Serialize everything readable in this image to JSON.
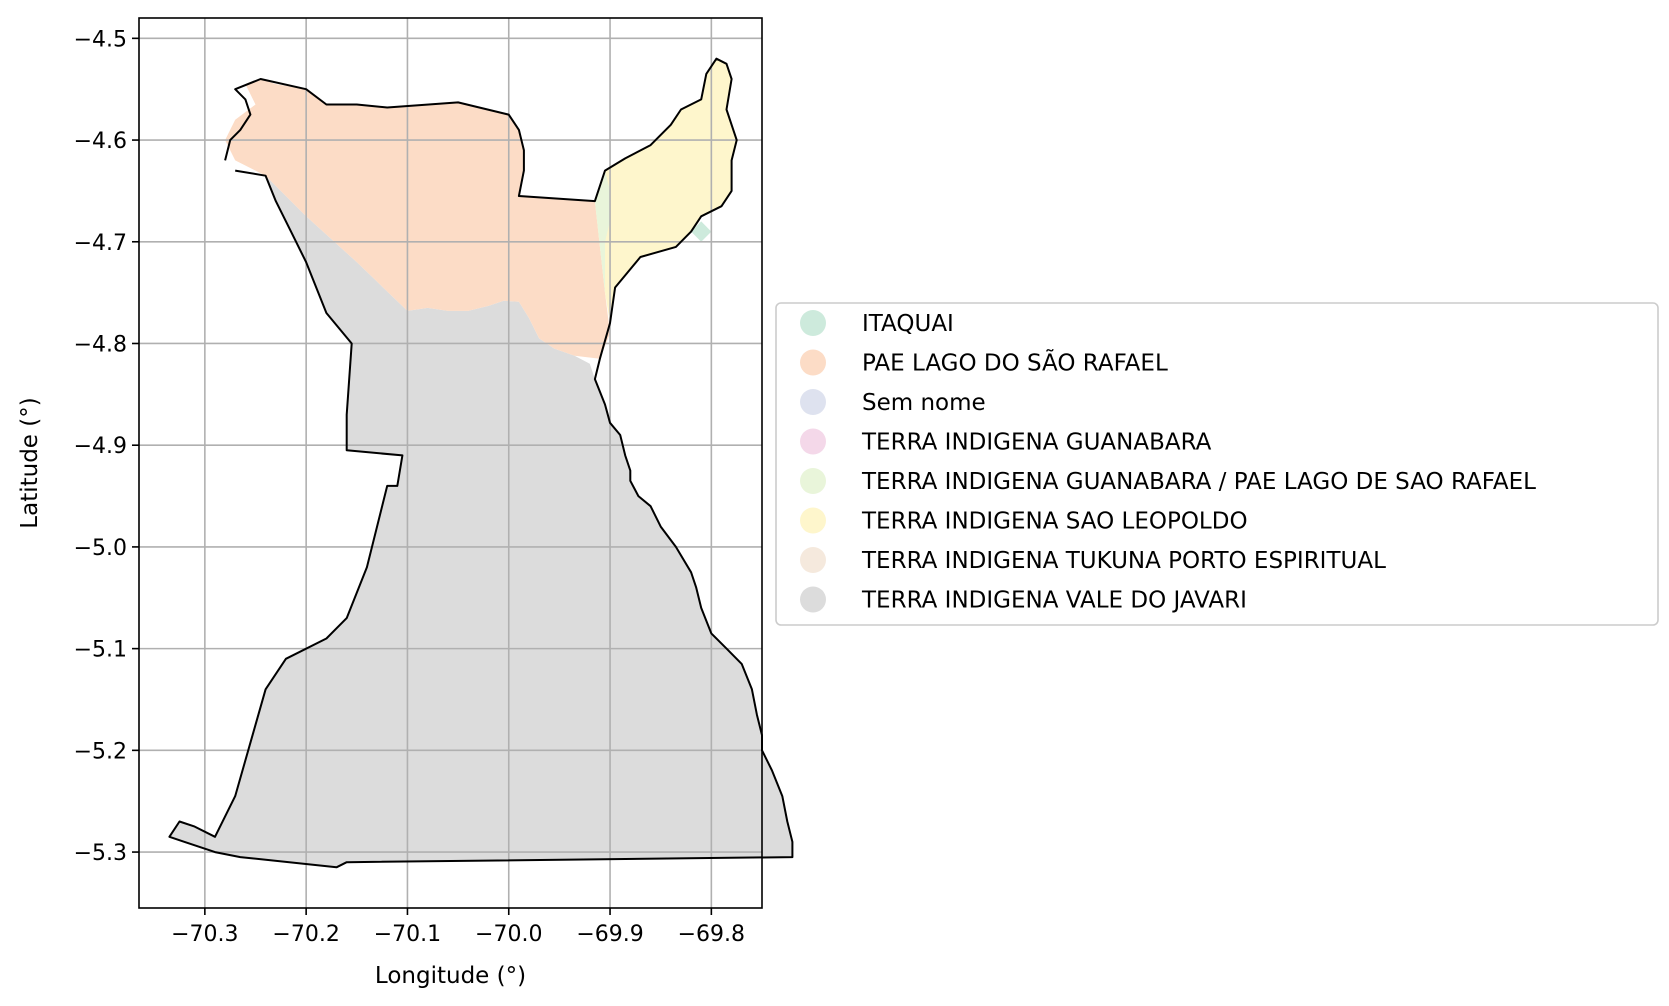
{
  "chart_data": {
    "type": "map",
    "xlabel": "Longitude (°)",
    "ylabel": "Latitude (°)",
    "xlim": [
      -70.365,
      -69.75
    ],
    "ylim": [
      -5.355,
      -4.48
    ],
    "xticks": [
      -70.3,
      -70.2,
      -70.1,
      -70.0,
      -69.9,
      -69.8
    ],
    "xtick_labels": [
      "−70.3",
      "−70.2",
      "−70.1",
      "−70.0",
      "−69.9",
      "−69.8"
    ],
    "yticks": [
      -4.5,
      -4.6,
      -4.7,
      -4.8,
      -4.9,
      -5.0,
      -5.1,
      -5.2,
      -5.3
    ],
    "ytick_labels": [
      "−4.5",
      "−4.6",
      "−4.7",
      "−4.8",
      "−4.9",
      "−5.0",
      "−5.1",
      "−5.2",
      "−5.3"
    ],
    "grid": true,
    "legend_placement": "center-left outside plot",
    "legend": [
      {
        "label": "ITAQUAI",
        "color": "#cdeadc"
      },
      {
        "label": "PAE LAGO DO SÃO RAFAEL",
        "color": "#fcdcc6"
      },
      {
        "label": "Sem nome",
        "color": "#dee2ef"
      },
      {
        "label": "TERRA INDIGENA GUANABARA",
        "color": "#f4d8e9"
      },
      {
        "label": "TERRA INDIGENA GUANABARA / PAE LAGO DE SAO RAFAEL",
        "color": "#e9f5da"
      },
      {
        "label": "TERRA INDIGENA SAO LEOPOLDO",
        "color": "#fef6cc"
      },
      {
        "label": "TERRA INDIGENA TUKUNA PORTO ESPIRITUAL",
        "color": "#f5e9dd"
      },
      {
        "label": "TERRA INDIGENA VALE DO JAVARI",
        "color": "#dcdcdc"
      }
    ],
    "regions": [
      {
        "name": "TERRA INDIGENA VALE DO JAVARI",
        "color": "#dcdcdc",
        "coords": [
          [
            -70.24,
            -4.635
          ],
          [
            -70.2,
            -4.675
          ],
          [
            -70.15,
            -4.72
          ],
          [
            -70.1,
            -4.768
          ],
          [
            -70.08,
            -4.765
          ],
          [
            -70.06,
            -4.768
          ],
          [
            -70.04,
            -4.768
          ],
          [
            -70.02,
            -4.763
          ],
          [
            -70.005,
            -4.758
          ],
          [
            -69.99,
            -4.759
          ],
          [
            -69.98,
            -4.775
          ],
          [
            -69.97,
            -4.795
          ],
          [
            -69.955,
            -4.805
          ],
          [
            -69.935,
            -4.812
          ],
          [
            -69.92,
            -4.82
          ],
          [
            -69.915,
            -4.835
          ],
          [
            -69.905,
            -4.86
          ],
          [
            -69.9,
            -4.878
          ],
          [
            -69.89,
            -4.89
          ],
          [
            -69.885,
            -4.91
          ],
          [
            -69.88,
            -4.925
          ],
          [
            -69.88,
            -4.935
          ],
          [
            -69.872,
            -4.95
          ],
          [
            -69.86,
            -4.96
          ],
          [
            -69.85,
            -4.98
          ],
          [
            -69.835,
            -5.0
          ],
          [
            -69.82,
            -5.025
          ],
          [
            -69.815,
            -5.04
          ],
          [
            -69.81,
            -5.06
          ],
          [
            -69.8,
            -5.085
          ],
          [
            -69.785,
            -5.1
          ],
          [
            -69.77,
            -5.115
          ],
          [
            -69.76,
            -5.14
          ],
          [
            -69.755,
            -5.165
          ],
          [
            -69.75,
            -5.185
          ],
          [
            -69.75,
            -5.2
          ],
          [
            -69.74,
            -5.22
          ],
          [
            -69.73,
            -5.245
          ],
          [
            -69.725,
            -5.27
          ],
          [
            -69.72,
            -5.29
          ],
          [
            -69.72,
            -5.305
          ],
          [
            -70.16,
            -5.31
          ],
          [
            -70.17,
            -5.315
          ],
          [
            -70.265,
            -5.305
          ],
          [
            -70.29,
            -5.3
          ],
          [
            -70.32,
            -5.29
          ],
          [
            -70.335,
            -5.285
          ],
          [
            -70.325,
            -5.27
          ],
          [
            -70.31,
            -5.275
          ],
          [
            -70.29,
            -5.285
          ],
          [
            -70.27,
            -5.245
          ],
          [
            -70.24,
            -5.14
          ],
          [
            -70.22,
            -5.11
          ],
          [
            -70.18,
            -5.09
          ],
          [
            -70.16,
            -5.07
          ],
          [
            -70.14,
            -5.02
          ],
          [
            -70.12,
            -4.94
          ],
          [
            -70.11,
            -4.94
          ],
          [
            -70.105,
            -4.91
          ],
          [
            -70.16,
            -4.905
          ],
          [
            -70.16,
            -4.87
          ],
          [
            -70.155,
            -4.8
          ],
          [
            -70.18,
            -4.77
          ],
          [
            -70.2,
            -4.72
          ],
          [
            -70.215,
            -4.69
          ],
          [
            -70.23,
            -4.66
          ]
        ]
      },
      {
        "name": "PAE LAGO DO SÃO RAFAEL",
        "color": "#fcdcc6",
        "coords": [
          [
            -70.24,
            -4.635
          ],
          [
            -70.27,
            -4.62
          ],
          [
            -70.28,
            -4.6
          ],
          [
            -70.27,
            -4.58
          ],
          [
            -70.25,
            -4.565
          ],
          [
            -70.26,
            -4.545
          ],
          [
            -70.245,
            -4.54
          ],
          [
            -70.23,
            -4.545
          ],
          [
            -70.2,
            -4.55
          ],
          [
            -70.18,
            -4.565
          ],
          [
            -70.15,
            -4.565
          ],
          [
            -70.12,
            -4.568
          ],
          [
            -70.05,
            -4.563
          ],
          [
            -70.0,
            -4.575
          ],
          [
            -69.99,
            -4.59
          ],
          [
            -69.985,
            -4.61
          ],
          [
            -69.985,
            -4.63
          ],
          [
            -69.99,
            -4.655
          ],
          [
            -69.915,
            -4.66
          ],
          [
            -69.905,
            -4.75
          ],
          [
            -69.9,
            -4.79
          ],
          [
            -69.91,
            -4.815
          ],
          [
            -69.935,
            -4.812
          ],
          [
            -69.955,
            -4.805
          ],
          [
            -69.97,
            -4.795
          ],
          [
            -69.98,
            -4.775
          ],
          [
            -69.99,
            -4.759
          ],
          [
            -70.005,
            -4.758
          ],
          [
            -70.02,
            -4.763
          ],
          [
            -70.04,
            -4.768
          ],
          [
            -70.06,
            -4.768
          ],
          [
            -70.08,
            -4.765
          ],
          [
            -70.1,
            -4.768
          ],
          [
            -70.15,
            -4.72
          ],
          [
            -70.2,
            -4.675
          ]
        ]
      },
      {
        "name": "TERRA INDIGENA SAO LEOPOLDO",
        "color": "#fef6cc",
        "coords": [
          [
            -69.915,
            -4.66
          ],
          [
            -69.905,
            -4.63
          ],
          [
            -69.885,
            -4.618
          ],
          [
            -69.86,
            -4.605
          ],
          [
            -69.84,
            -4.585
          ],
          [
            -69.83,
            -4.57
          ],
          [
            -69.81,
            -4.56
          ],
          [
            -69.805,
            -4.535
          ],
          [
            -69.795,
            -4.52
          ],
          [
            -69.785,
            -4.525
          ],
          [
            -69.78,
            -4.54
          ],
          [
            -69.785,
            -4.57
          ],
          [
            -69.775,
            -4.6
          ],
          [
            -69.78,
            -4.62
          ],
          [
            -69.78,
            -4.65
          ],
          [
            -69.79,
            -4.665
          ],
          [
            -69.81,
            -4.675
          ],
          [
            -69.82,
            -4.69
          ],
          [
            -69.835,
            -4.705
          ],
          [
            -69.87,
            -4.715
          ],
          [
            -69.895,
            -4.745
          ],
          [
            -69.9,
            -4.78
          ],
          [
            -69.905,
            -4.75
          ]
        ]
      },
      {
        "name": "TERRA INDIGENA GUANABARA / PAE LAGO DE SAO RAFAEL",
        "color": "#e9f5da",
        "coords": [
          [
            -69.915,
            -4.66
          ],
          [
            -69.905,
            -4.63
          ],
          [
            -69.9,
            -4.65
          ],
          [
            -69.9,
            -4.68
          ],
          [
            -69.905,
            -4.7
          ],
          [
            -69.905,
            -4.75
          ]
        ]
      },
      {
        "name": "ITAQUAI",
        "color": "#cdeadc",
        "coords": [
          [
            -69.82,
            -4.69
          ],
          [
            -69.81,
            -4.68
          ],
          [
            -69.8,
            -4.69
          ],
          [
            -69.81,
            -4.7
          ]
        ]
      }
    ],
    "outline": [
      [
        -70.28,
        -4.62
      ],
      [
        -70.275,
        -4.6
      ],
      [
        -70.265,
        -4.59
      ],
      [
        -70.255,
        -4.575
      ],
      [
        -70.26,
        -4.56
      ],
      [
        -70.27,
        -4.55
      ],
      [
        -70.245,
        -4.54
      ],
      [
        -70.2,
        -4.55
      ],
      [
        -70.18,
        -4.565
      ],
      [
        -70.15,
        -4.565
      ],
      [
        -70.12,
        -4.568
      ],
      [
        -70.05,
        -4.563
      ],
      [
        -70.0,
        -4.575
      ],
      [
        -69.99,
        -4.59
      ],
      [
        -69.985,
        -4.61
      ],
      [
        -69.985,
        -4.63
      ],
      [
        -69.99,
        -4.655
      ],
      [
        -69.915,
        -4.66
      ],
      [
        -69.905,
        -4.63
      ],
      [
        -69.885,
        -4.618
      ],
      [
        -69.86,
        -4.605
      ],
      [
        -69.84,
        -4.585
      ],
      [
        -69.83,
        -4.57
      ],
      [
        -69.81,
        -4.56
      ],
      [
        -69.805,
        -4.535
      ],
      [
        -69.795,
        -4.52
      ],
      [
        -69.785,
        -4.525
      ],
      [
        -69.78,
        -4.54
      ],
      [
        -69.785,
        -4.57
      ],
      [
        -69.775,
        -4.6
      ],
      [
        -69.78,
        -4.62
      ],
      [
        -69.78,
        -4.65
      ],
      [
        -69.79,
        -4.665
      ],
      [
        -69.81,
        -4.675
      ],
      [
        -69.82,
        -4.69
      ],
      [
        -69.835,
        -4.705
      ],
      [
        -69.87,
        -4.715
      ],
      [
        -69.895,
        -4.745
      ],
      [
        -69.9,
        -4.78
      ],
      [
        -69.91,
        -4.815
      ],
      [
        -69.915,
        -4.835
      ],
      [
        -69.905,
        -4.86
      ],
      [
        -69.9,
        -4.878
      ],
      [
        -69.89,
        -4.89
      ],
      [
        -69.885,
        -4.91
      ],
      [
        -69.88,
        -4.925
      ],
      [
        -69.88,
        -4.935
      ],
      [
        -69.872,
        -4.95
      ],
      [
        -69.86,
        -4.96
      ],
      [
        -69.85,
        -4.98
      ],
      [
        -69.835,
        -5.0
      ],
      [
        -69.82,
        -5.025
      ],
      [
        -69.815,
        -5.04
      ],
      [
        -69.81,
        -5.06
      ],
      [
        -69.8,
        -5.085
      ],
      [
        -69.785,
        -5.1
      ],
      [
        -69.77,
        -5.115
      ],
      [
        -69.76,
        -5.14
      ],
      [
        -69.755,
        -5.165
      ],
      [
        -69.75,
        -5.185
      ],
      [
        -69.75,
        -5.2
      ],
      [
        -69.74,
        -5.22
      ],
      [
        -69.73,
        -5.245
      ],
      [
        -69.725,
        -5.27
      ],
      [
        -69.72,
        -5.29
      ],
      [
        -69.72,
        -5.305
      ],
      [
        -70.16,
        -5.31
      ],
      [
        -70.17,
        -5.315
      ],
      [
        -70.265,
        -5.305
      ],
      [
        -70.29,
        -5.3
      ],
      [
        -70.32,
        -5.29
      ],
      [
        -70.335,
        -5.285
      ],
      [
        -70.325,
        -5.27
      ],
      [
        -70.31,
        -5.275
      ],
      [
        -70.29,
        -5.285
      ],
      [
        -70.27,
        -5.245
      ],
      [
        -70.24,
        -5.14
      ],
      [
        -70.22,
        -5.11
      ],
      [
        -70.18,
        -5.09
      ],
      [
        -70.16,
        -5.07
      ],
      [
        -70.14,
        -5.02
      ],
      [
        -70.12,
        -4.94
      ],
      [
        -70.11,
        -4.94
      ],
      [
        -70.105,
        -4.91
      ],
      [
        -70.16,
        -4.905
      ],
      [
        -70.16,
        -4.87
      ],
      [
        -70.155,
        -4.8
      ],
      [
        -70.18,
        -4.77
      ],
      [
        -70.2,
        -4.72
      ],
      [
        -70.215,
        -4.69
      ],
      [
        -70.23,
        -4.66
      ],
      [
        -70.24,
        -4.635
      ],
      [
        -70.27,
        -4.63
      ]
    ]
  }
}
